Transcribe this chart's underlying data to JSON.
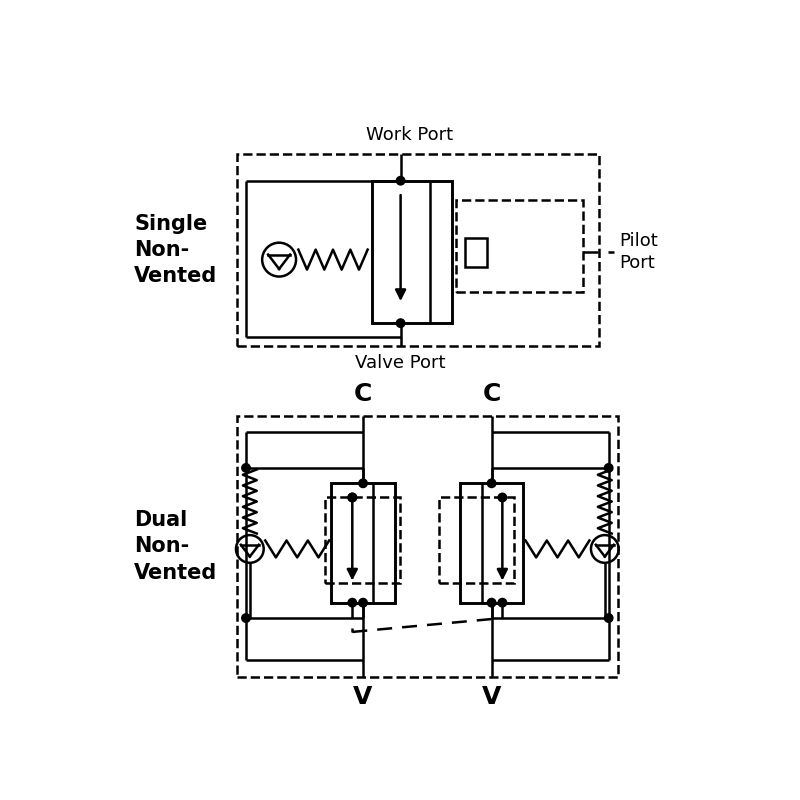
{
  "bg_color": "#ffffff",
  "line_color": "#000000",
  "lw": 1.8,
  "dash": [
    6,
    4
  ],
  "font_size_label": 15,
  "font_size_port": 13,
  "font_size_cv": 18,
  "title_top": "Single\nNon-\nVented",
  "title_bottom": "Dual\nNon-\nVented",
  "work_port_label": "Work Port",
  "valve_port_label": "Valve Port",
  "pilot_port_label": "Pilot\nPort",
  "c_label_left": "C",
  "c_label_right": "C",
  "v_label_left": "V",
  "v_label_right": "V"
}
